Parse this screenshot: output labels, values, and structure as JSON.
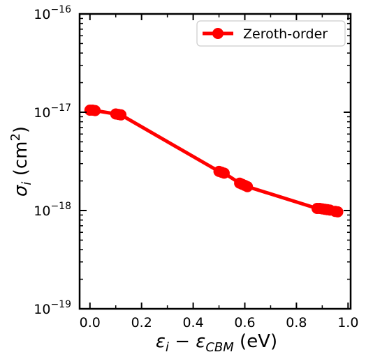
{
  "chart_data": {
    "type": "line",
    "xlabel_parts": {
      "eps": "ε",
      "sub_i": "i",
      "minus": " − ",
      "sub_cbm": "CBM",
      "unit": " (eV)"
    },
    "ylabel_parts": {
      "sigma": "σ",
      "sub_i": "i",
      "unit_open": " (cm",
      "sup": "2",
      "unit_close": ")"
    },
    "xlim": [
      -0.04,
      1.01
    ],
    "ylim_log10": [
      -19,
      -16
    ],
    "yscale": "log",
    "x_ticks": [
      0.0,
      0.2,
      0.4,
      0.6,
      0.8,
      1.0
    ],
    "x_tick_labels": [
      "0.0",
      "0.2",
      "0.4",
      "0.6",
      "0.8",
      "1.0"
    ],
    "y_ticks_log10": [
      -19,
      -18,
      -17,
      -16
    ],
    "y_tick_labels": [
      {
        "base": "10",
        "exp": "−19"
      },
      {
        "base": "10",
        "exp": "−18"
      },
      {
        "base": "10",
        "exp": "−17"
      },
      {
        "base": "10",
        "exp": "−16"
      }
    ],
    "legend_position": "top-right",
    "grid": false,
    "series": [
      {
        "name": "Zeroth-order",
        "color": "#ff0000",
        "marker": "circle",
        "points": [
          {
            "x": 0.0,
            "y": 1.05e-17
          },
          {
            "x": 0.01,
            "y": 1.05e-17
          },
          {
            "x": 0.02,
            "y": 1.04e-17
          },
          {
            "x": 0.1,
            "y": 9.6e-18
          },
          {
            "x": 0.11,
            "y": 9.5e-18
          },
          {
            "x": 0.12,
            "y": 9.4e-18
          },
          {
            "x": 0.5,
            "y": 2.5e-18
          },
          {
            "x": 0.51,
            "y": 2.45e-18
          },
          {
            "x": 0.52,
            "y": 2.4e-18
          },
          {
            "x": 0.58,
            "y": 1.9e-18
          },
          {
            "x": 0.59,
            "y": 1.85e-18
          },
          {
            "x": 0.6,
            "y": 1.8e-18
          },
          {
            "x": 0.61,
            "y": 1.75e-18
          },
          {
            "x": 0.88,
            "y": 1.05e-18
          },
          {
            "x": 0.89,
            "y": 1.05e-18
          },
          {
            "x": 0.9,
            "y": 1.04e-18
          },
          {
            "x": 0.91,
            "y": 1.03e-18
          },
          {
            "x": 0.92,
            "y": 1.02e-18
          },
          {
            "x": 0.93,
            "y": 1.01e-18
          },
          {
            "x": 0.95,
            "y": 9.8e-19
          },
          {
            "x": 0.96,
            "y": 9.7e-19
          }
        ]
      }
    ]
  }
}
